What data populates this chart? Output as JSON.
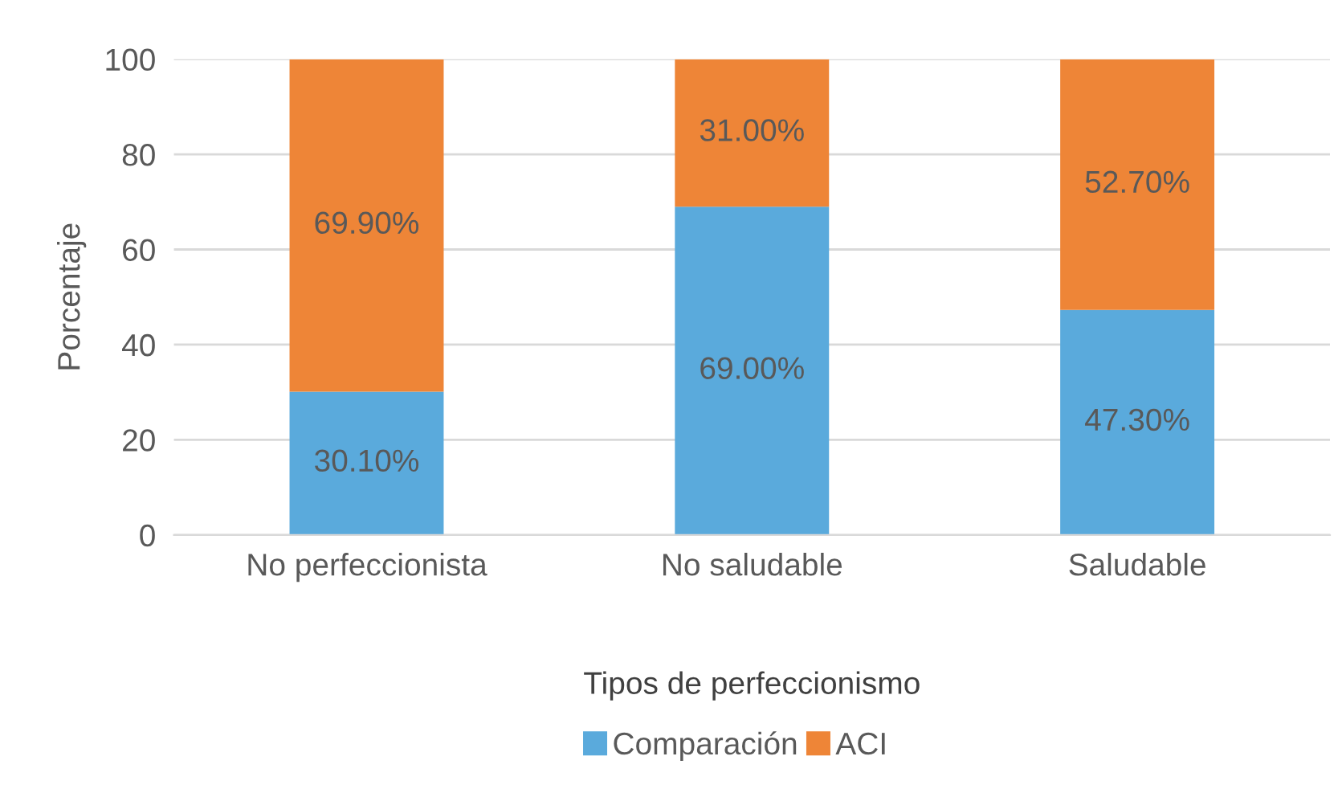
{
  "chart_data": {
    "type": "bar",
    "stacked": true,
    "xlabel": "Tipos de perfeccionismo",
    "ylabel": "Porcentaje",
    "categories": [
      "No perfeccionista",
      "No saludable",
      "Saludable"
    ],
    "series": [
      {
        "name": "Comparación",
        "color": "#5aaadc",
        "values": [
          30.1,
          69.0,
          47.3
        ],
        "value_labels": [
          "30.10%",
          "69.00%",
          "47.30%"
        ]
      },
      {
        "name": "ACI",
        "color": "#ee8537",
        "values": [
          69.9,
          31.0,
          52.7
        ],
        "value_labels": [
          "69.90%",
          "31.00%",
          "52.70%"
        ]
      }
    ],
    "ylim": [
      0,
      100
    ],
    "yticks": [
      0,
      20,
      40,
      60,
      80,
      100
    ],
    "grid": "y",
    "legend": "bottom"
  }
}
